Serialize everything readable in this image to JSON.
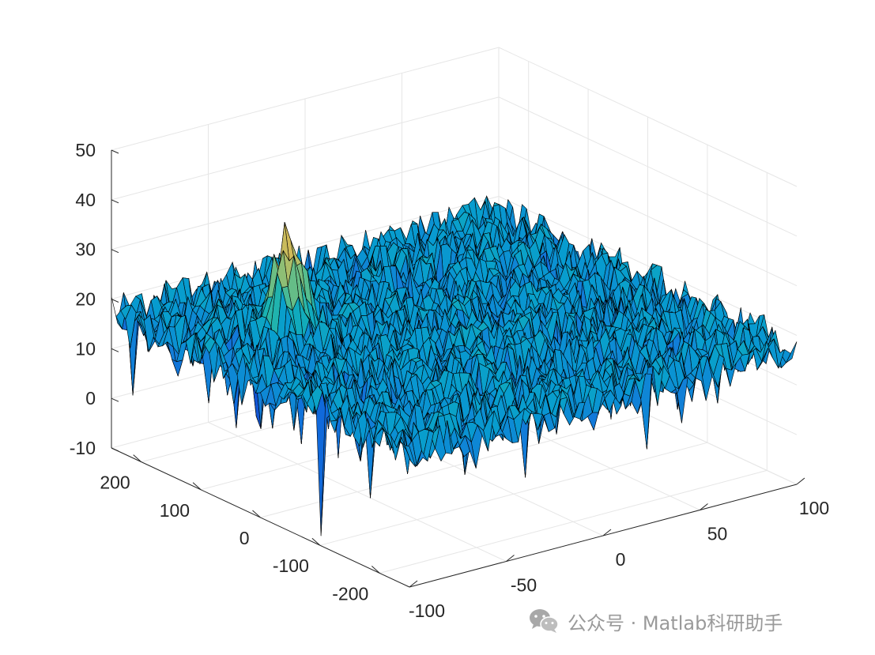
{
  "chart_data": {
    "type": "surface",
    "title": "",
    "xlabel": "",
    "ylabel": "",
    "zlabel": "",
    "x_range": [
      -100,
      100
    ],
    "y_range": [
      -250,
      250
    ],
    "z_range": [
      -10,
      50
    ],
    "x_ticks": [
      "-100",
      "-50",
      "0",
      "50",
      "100"
    ],
    "y_ticks": [
      "-200",
      "-100",
      "0",
      "100",
      "200"
    ],
    "z_ticks": [
      "-10",
      "0",
      "10",
      "20",
      "30",
      "40",
      "50"
    ],
    "grid": true,
    "colormap": "parula",
    "edge_color": "#000000",
    "noise_floor_mean": 17,
    "noise_floor_spread": 6,
    "peak": {
      "x": -55,
      "y": 100,
      "z": 37
    },
    "notch": {
      "x": -100,
      "y": -100,
      "z": -8
    }
  },
  "watermark": {
    "icon": "wechat-icon",
    "text": "公众号 · Matlab科研助手"
  }
}
